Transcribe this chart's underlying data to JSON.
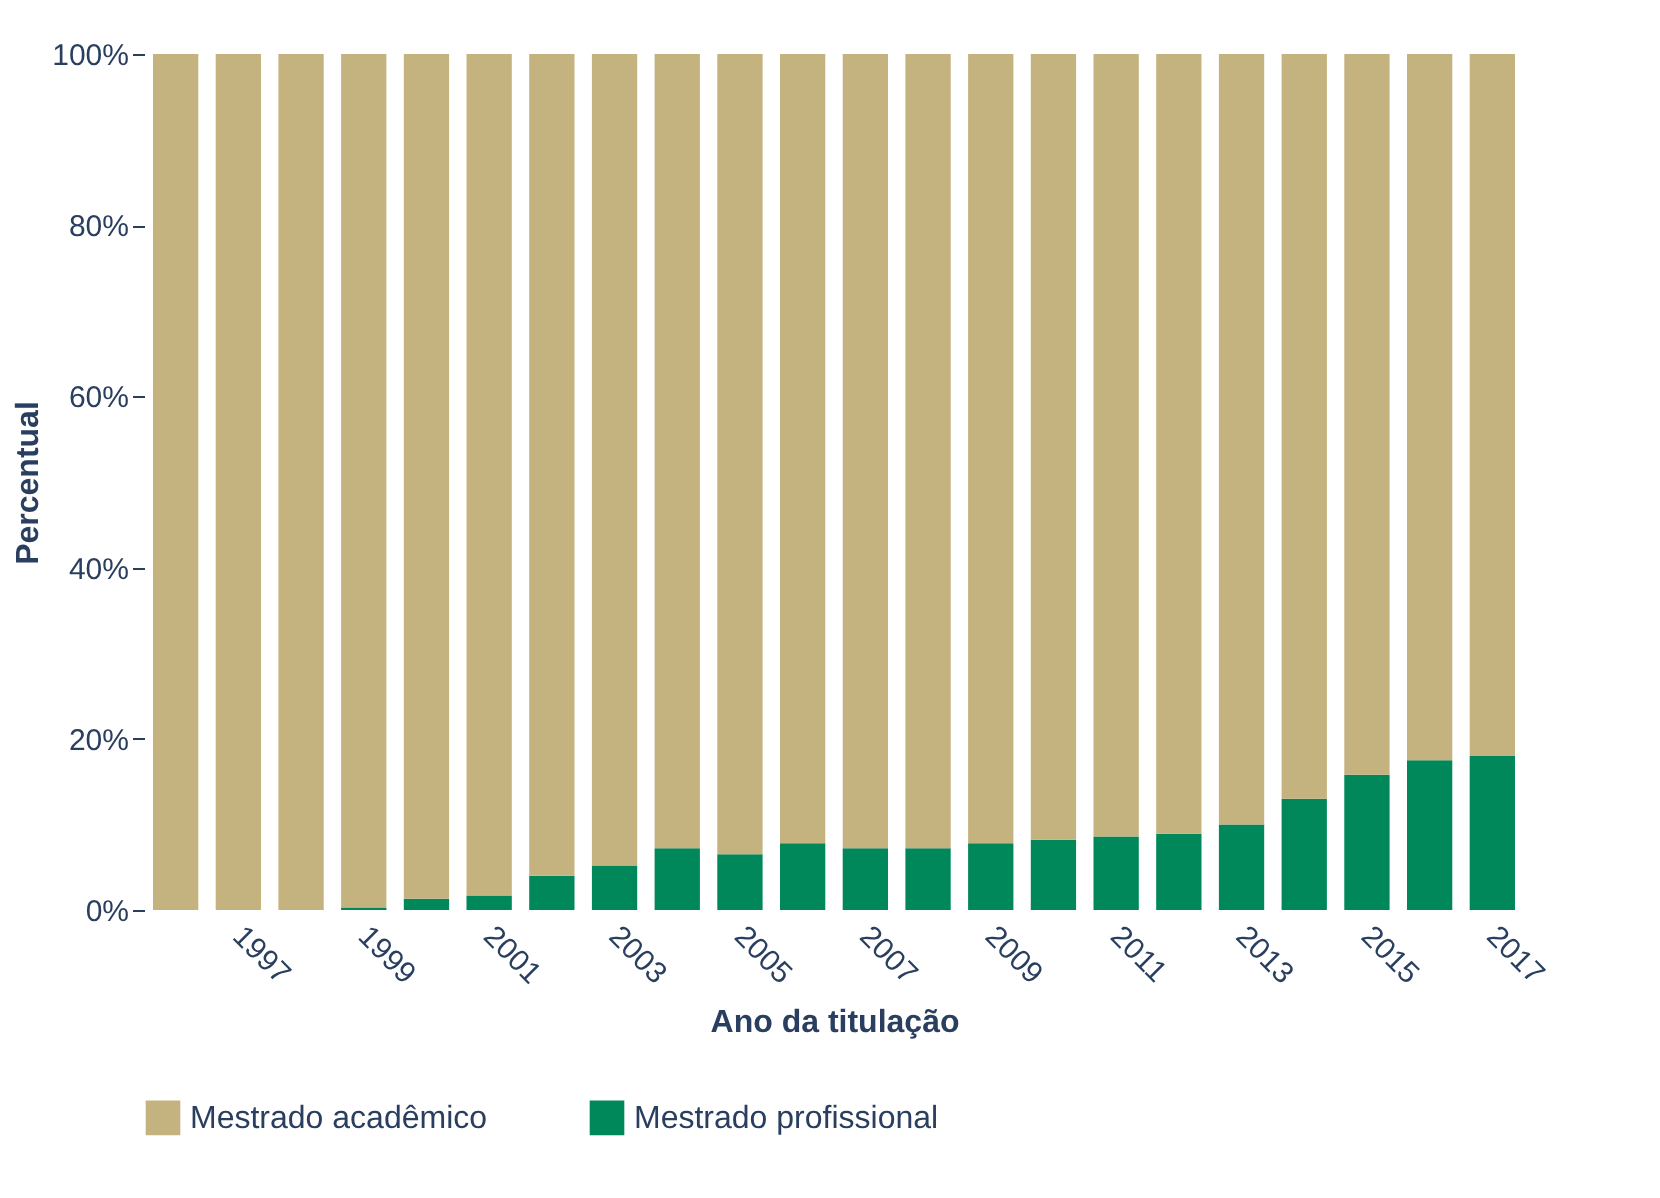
{
  "chart_data": {
    "type": "bar",
    "stacked": true,
    "xlabel": "Ano da titulação",
    "ylabel": "Percentual",
    "categories": [
      null,
      "1997",
      null,
      "1999",
      null,
      "2001",
      null,
      "2003",
      null,
      "2005",
      null,
      "2007",
      null,
      "2009",
      null,
      "2011",
      null,
      "2013",
      null,
      "2015",
      null,
      "2017"
    ],
    "series": [
      {
        "name": "Mestrado profissional",
        "color": "#00875a",
        "values": [
          0,
          0,
          0,
          0.3,
          1.3,
          1.7,
          4,
          5.2,
          7.2,
          6.5,
          7.8,
          7.2,
          7.2,
          7.8,
          8.2,
          8.6,
          8.9,
          10,
          13,
          15.8,
          17.5,
          18
        ]
      },
      {
        "name": "Mestrado acadêmico",
        "color": "#c4b27f",
        "values": [
          100,
          100,
          100,
          99.7,
          98.7,
          98.3,
          96,
          94.8,
          92.8,
          93.5,
          92.2,
          92.8,
          92.8,
          92.2,
          91.8,
          91.4,
          91.1,
          90,
          87,
          84.2,
          82.5,
          82
        ]
      }
    ],
    "ylim": [
      0,
      100
    ],
    "yticks": [
      {
        "value": 0,
        "label": "0%"
      },
      {
        "value": 20,
        "label": "20%"
      },
      {
        "value": 40,
        "label": "40%"
      },
      {
        "value": 60,
        "label": "60%"
      },
      {
        "value": 80,
        "label": "80%"
      },
      {
        "value": 100,
        "label": "100%"
      }
    ],
    "grid": false,
    "legend": "bottom"
  }
}
